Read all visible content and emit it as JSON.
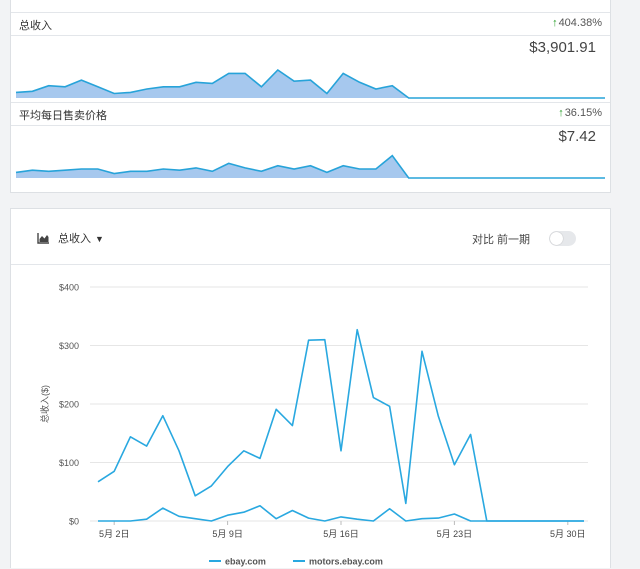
{
  "colors": {
    "line": "#29a8e0",
    "spark_fill": "#a6c8ee",
    "spark_line": "#27a3d9",
    "up_arrow": "#2ca02c",
    "grid": "#e6e6e6"
  },
  "sparks": [
    {
      "title": "总收入",
      "change": "404.38%",
      "value": "$3,901.91",
      "values": [
        5,
        6,
        11,
        10,
        16,
        10,
        4,
        5,
        8,
        10,
        10,
        14,
        13,
        22,
        22,
        10,
        25,
        15,
        16,
        4,
        22,
        14,
        8,
        11,
        0,
        0,
        0,
        0,
        0,
        0,
        0,
        0,
        0,
        0,
        0,
        0,
        0
      ]
    },
    {
      "title": "平均每日售卖价格",
      "change": "36.15%",
      "value": "$7.42",
      "values": [
        5,
        7,
        6,
        7,
        8,
        8,
        4,
        6,
        6,
        8,
        7,
        9,
        6,
        13,
        9,
        6,
        11,
        8,
        11,
        5,
        11,
        8,
        8,
        20,
        0,
        0,
        0,
        0,
        0,
        0,
        0,
        0,
        0,
        0,
        0,
        0,
        0
      ]
    }
  ],
  "header": {
    "metric_label": "总收入",
    "compare_label": "对比 前一期",
    "compare_enabled": false
  },
  "chart_data": {
    "type": "line",
    "ylabel": "总收入($)",
    "ylim": [
      0,
      400
    ],
    "yticks": [
      0,
      100,
      200,
      300,
      400
    ],
    "ytick_labels": [
      "$0",
      "$100",
      "$200",
      "$300",
      "$400"
    ],
    "x": [
      "5月1日",
      "5月2日",
      "5月3日",
      "5月4日",
      "5月5日",
      "5月6日",
      "5月7日",
      "5月8日",
      "5月9日",
      "5月10日",
      "5月11日",
      "5月12日",
      "5月13日",
      "5月14日",
      "5月15日",
      "5月16日",
      "5月17日",
      "5月18日",
      "5月19日",
      "5月20日",
      "5月21日",
      "5月22日",
      "5月23日",
      "5月24日",
      "5月25日",
      "5月26日",
      "5月27日",
      "5月28日",
      "5月29日",
      "5月30日",
      "5月31日"
    ],
    "xtick_labels": [
      "5月 2日",
      "5月 9日",
      "5月 16日",
      "5月 23日",
      "5月 30日"
    ],
    "series": [
      {
        "name": "ebay.com",
        "values": [
          67,
          85,
          144,
          128,
          180,
          120,
          43,
          60,
          93,
          120,
          107,
          191,
          163,
          309,
          310,
          120,
          327,
          211,
          196,
          30,
          290,
          180,
          96,
          148,
          0,
          0,
          0,
          0,
          0,
          0,
          0
        ]
      },
      {
        "name": "motors.ebay.com",
        "values": [
          0,
          0,
          0,
          3,
          22,
          8,
          4,
          0,
          10,
          15,
          26,
          4,
          18,
          5,
          0,
          7,
          3,
          0,
          21,
          0,
          4,
          5,
          12,
          0,
          0,
          0,
          0,
          0,
          0,
          0,
          0
        ]
      }
    ]
  }
}
